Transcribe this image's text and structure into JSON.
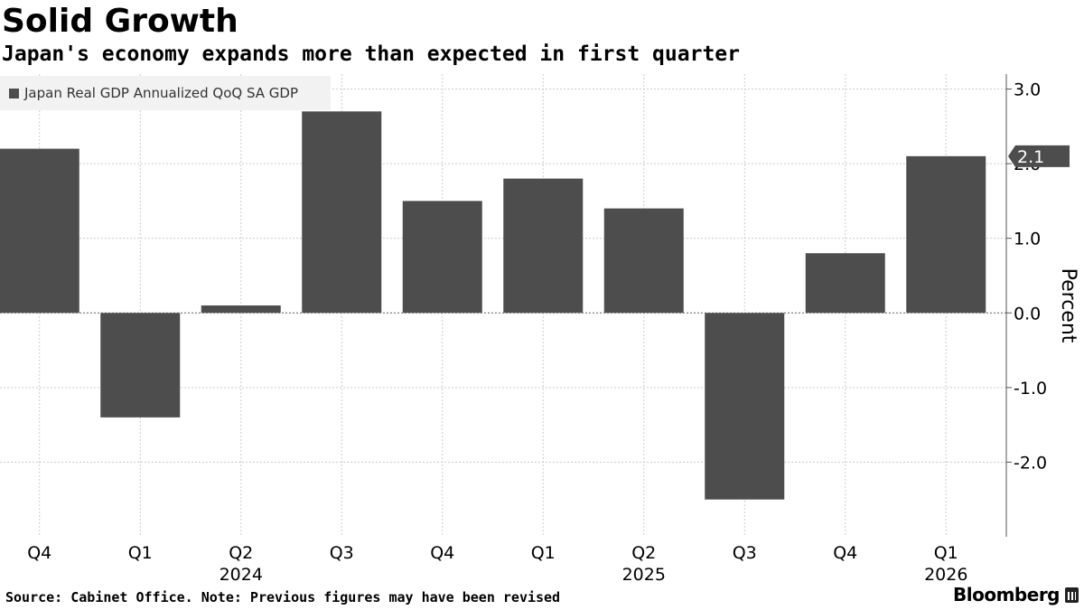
{
  "header": {
    "title": "Solid Growth",
    "subtitle": "Japan's economy expands more than expected in first quarter"
  },
  "footer": {
    "source": "Source: Cabinet Office. Note: Previous figures may have been revised",
    "brand": "Bloomberg"
  },
  "colors": {
    "bar": "#4d4d4d",
    "grid": "#cccccc",
    "axis": "#555555",
    "callout": "#4d4d4d"
  },
  "chart_data": {
    "type": "bar",
    "title": "Solid Growth",
    "subtitle": "Japan's economy expands more than expected in first quarter",
    "categories": [
      "Q4",
      "Q1",
      "Q2",
      "Q3",
      "Q4",
      "Q1",
      "Q2",
      "Q3",
      "Q4",
      "Q1"
    ],
    "year_labels": [
      {
        "category_index": 2,
        "label": "2024"
      },
      {
        "category_index": 6,
        "label": "2025"
      },
      {
        "category_index": 9,
        "label": "2026"
      }
    ],
    "series": [
      {
        "name": "Japan Real GDP Annualized QoQ SA GDP",
        "values": [
          2.2,
          -1.4,
          0.1,
          2.7,
          1.5,
          1.8,
          1.4,
          -2.5,
          0.8,
          2.1
        ]
      }
    ],
    "ylabel": "Percent",
    "ylim": [
      -3.0,
      3.2
    ],
    "yticks": [
      "3.0",
      "2.0",
      "1.0",
      "0.0",
      "-1.0",
      "-2.0"
    ],
    "ytick_values": [
      3.0,
      2.0,
      1.0,
      0.0,
      -1.0,
      -2.0
    ],
    "last_value_label": "2.1",
    "grid": true,
    "legend": "top-left",
    "y_axis_side": "right"
  }
}
